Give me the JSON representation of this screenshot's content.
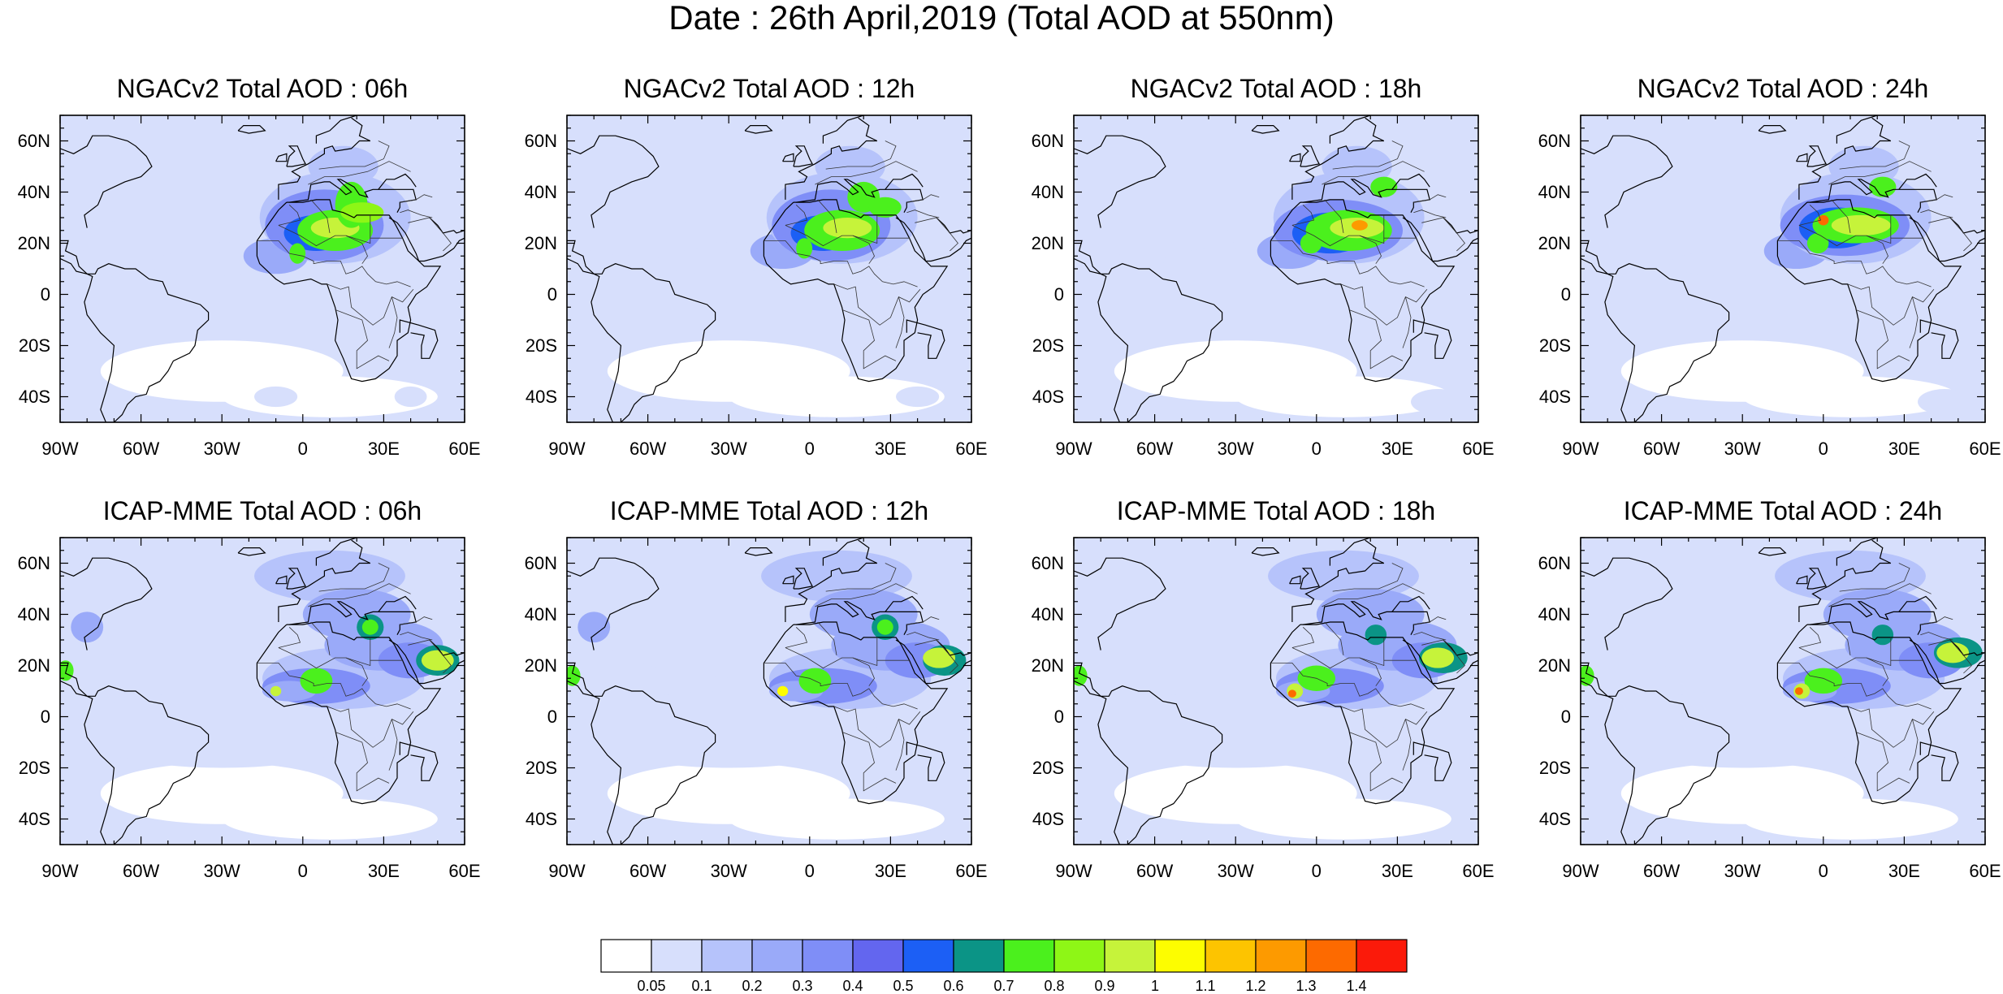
{
  "title": "Date : 26th April,2019 (Total AOD at 550nm)",
  "map_extent": {
    "lon": [
      -90,
      60
    ],
    "lat": [
      -50,
      70
    ]
  },
  "lat_ticks": [
    {
      "value": 60,
      "label": "60N"
    },
    {
      "value": 40,
      "label": "40N"
    },
    {
      "value": 20,
      "label": "20N"
    },
    {
      "value": 0,
      "label": "0"
    },
    {
      "value": -20,
      "label": "20S"
    },
    {
      "value": -40,
      "label": "40S"
    }
  ],
  "lon_ticks": [
    {
      "value": -90,
      "label": "90W"
    },
    {
      "value": -60,
      "label": "60W"
    },
    {
      "value": -30,
      "label": "30W"
    },
    {
      "value": 0,
      "label": "0"
    },
    {
      "value": 30,
      "label": "30E"
    },
    {
      "value": 60,
      "label": "60E"
    }
  ],
  "panels": [
    {
      "title": "NGACv2 Total AOD : 06h",
      "model": "NGACv2",
      "hour": 6
    },
    {
      "title": "NGACv2 Total AOD : 12h",
      "model": "NGACv2",
      "hour": 12
    },
    {
      "title": "NGACv2 Total AOD : 18h",
      "model": "NGACv2",
      "hour": 18
    },
    {
      "title": "NGACv2 Total AOD : 24h",
      "model": "NGACv2",
      "hour": 24
    },
    {
      "title": "ICAP-MME Total AOD : 06h",
      "model": "ICAP-MME",
      "hour": 6
    },
    {
      "title": "ICAP-MME Total AOD : 12h",
      "model": "ICAP-MME",
      "hour": 12
    },
    {
      "title": "ICAP-MME Total AOD : 18h",
      "model": "ICAP-MME",
      "hour": 18
    },
    {
      "title": "ICAP-MME Total AOD : 24h",
      "model": "ICAP-MME",
      "hour": 24
    }
  ],
  "colorbar": {
    "levels": [
      "0.05",
      "0.1",
      "0.2",
      "0.3",
      "0.4",
      "0.5",
      "0.6",
      "0.7",
      "0.8",
      "0.9",
      "1",
      "1.1",
      "1.2",
      "1.3",
      "1.4"
    ],
    "colors": [
      "#ffffff",
      "#d7dffc",
      "#b6c3fb",
      "#9aaaf9",
      "#7f8ef7",
      "#6366ef",
      "#1c5ff5",
      "#0b9486",
      "#4bf01d",
      "#8ef616",
      "#c6f33a",
      "#fdfd00",
      "#fdc400",
      "#fd9a00",
      "#fd6a00",
      "#fb1a0a"
    ]
  }
}
